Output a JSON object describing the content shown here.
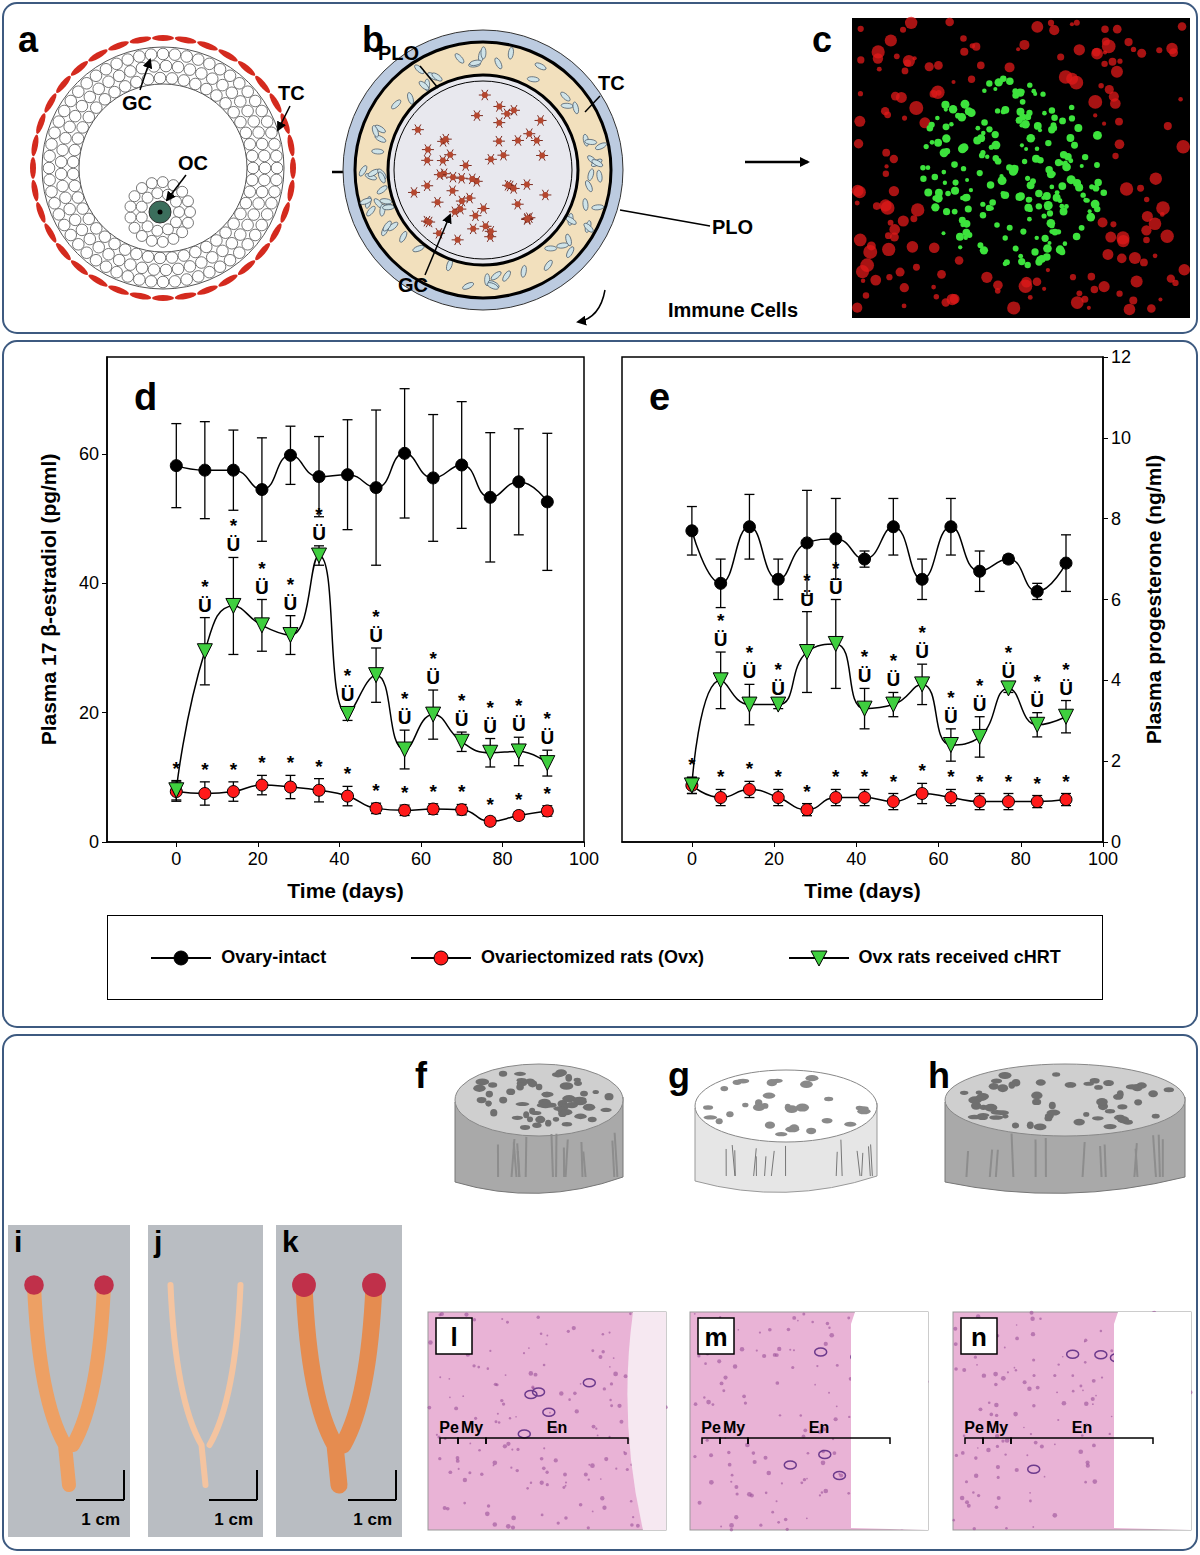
{
  "chart_data": [
    {
      "type": "line",
      "title": "d",
      "xlabel": "Time (days)",
      "ylabel": "Plasma 17 β-estradiol (pg/ml)",
      "x": [
        0,
        7,
        14,
        21,
        28,
        35,
        42,
        49,
        56,
        63,
        70,
        77,
        84,
        91
      ],
      "xlim": [
        -17,
        100
      ],
      "xticks": [
        0,
        20,
        40,
        60,
        80,
        100
      ],
      "ylim": [
        0,
        75
      ],
      "yticks": [
        0,
        20,
        40,
        60
      ],
      "series": [
        {
          "name": "Ovary-intact",
          "color": "#000000",
          "marker": "circle",
          "values": [
            58.2,
            57.5,
            57.5,
            54.5,
            59.8,
            56.5,
            56.8,
            54.8,
            60.1,
            56.3,
            58.3,
            53.3,
            55.7,
            52.6
          ],
          "errors": [
            6.5,
            7.5,
            6.2,
            8.0,
            4.5,
            6.2,
            8.5,
            12.0,
            10.0,
            9.8,
            9.8,
            10.0,
            8.2,
            10.6
          ]
        },
        {
          "name": "Ovariectomized rats (Ovx)",
          "color": "#ff1a1a",
          "marker": "circle",
          "values": [
            7.8,
            7.5,
            7.8,
            8.8,
            8.5,
            8.0,
            7.1,
            5.2,
            4.9,
            5.1,
            5.0,
            3.2,
            4.1,
            4.8
          ],
          "errors": [
            1.5,
            1.8,
            1.5,
            1.5,
            1.8,
            1.8,
            1.5,
            0.8,
            0.8,
            0.8,
            0.8,
            0.6,
            0.6,
            0.8
          ],
          "annotations": [
            null,
            [
              "*"
            ],
            [
              "*"
            ],
            [
              "*"
            ],
            [
              "*"
            ],
            [
              "*"
            ],
            [
              "*"
            ],
            [
              "*"
            ],
            [
              "*"
            ],
            [
              "*"
            ],
            [
              "*"
            ],
            [
              "*"
            ],
            [
              "*"
            ],
            [
              "*"
            ]
          ]
        },
        {
          "name": "Ovx rats received cHRT",
          "color": "#3fcf3f",
          "marker": "triangle-down",
          "values": [
            8.0,
            29.5,
            36.5,
            33.5,
            32.0,
            44.3,
            19.8,
            25.8,
            14.3,
            19.7,
            15.5,
            13.8,
            14.0,
            12.2
          ],
          "errors": [
            1.5,
            5.2,
            7.5,
            4.0,
            3.0,
            1.5,
            1.0,
            4.2,
            3.0,
            3.8,
            1.5,
            2.2,
            2.2,
            2.0
          ],
          "annotations": [
            [
              "*"
            ],
            [
              "*",
              "Ü"
            ],
            [
              "*",
              "Ü"
            ],
            [
              "*",
              "Ü"
            ],
            [
              "*",
              "Ü"
            ],
            [
              "*",
              "Ü"
            ],
            [
              "*",
              "Ü"
            ],
            [
              "*",
              "Ü"
            ],
            [
              "*",
              "Ü"
            ],
            [
              "*",
              "Ü"
            ],
            [
              "*",
              "Ü"
            ],
            [
              "*",
              "Ü"
            ],
            [
              "*",
              "Ü"
            ],
            [
              "*",
              "Ü"
            ]
          ]
        }
      ]
    },
    {
      "type": "line",
      "title": "e",
      "xlabel": "Time (days)",
      "ylabel": "Plasma progesterone (ng/ml)",
      "x": [
        0,
        7,
        14,
        21,
        28,
        35,
        42,
        49,
        56,
        63,
        70,
        77,
        84,
        91
      ],
      "xlim": [
        -17,
        100
      ],
      "xticks": [
        0,
        20,
        40,
        60,
        80,
        100
      ],
      "ylim": [
        0,
        12
      ],
      "yticks": [
        0,
        2,
        4,
        6,
        8,
        10,
        12
      ],
      "series": [
        {
          "name": "Ovary-intact",
          "color": "#000000",
          "marker": "circle",
          "values": [
            7.7,
            6.4,
            7.8,
            6.5,
            7.4,
            7.5,
            7.0,
            7.8,
            6.5,
            7.8,
            6.7,
            7.0,
            6.2,
            6.9
          ],
          "errors": [
            0.6,
            0.6,
            0.8,
            0.5,
            1.3,
            1.0,
            0.2,
            0.7,
            0.5,
            0.7,
            0.5,
            0.1,
            0.2,
            0.7
          ]
        },
        {
          "name": "Ovariectomized rats (Ovx)",
          "color": "#ff1a1a",
          "marker": "circle",
          "values": [
            1.4,
            1.1,
            1.3,
            1.1,
            0.8,
            1.1,
            1.1,
            1.0,
            1.2,
            1.1,
            1.0,
            1.0,
            1.0,
            1.05
          ],
          "errors": [
            0.2,
            0.2,
            0.2,
            0.2,
            0.15,
            0.2,
            0.2,
            0.2,
            0.25,
            0.2,
            0.2,
            0.2,
            0.15,
            0.15
          ],
          "annotations": [
            null,
            [
              "*"
            ],
            [
              "*"
            ],
            [
              "*"
            ],
            [
              "*"
            ],
            [
              "*"
            ],
            [
              "*"
            ],
            [
              "*"
            ],
            [
              "*"
            ],
            [
              "*"
            ],
            [
              "*"
            ],
            [
              "*"
            ],
            [
              "*"
            ],
            [
              "*"
            ]
          ]
        },
        {
          "name": "Ovx rats received cHRT",
          "color": "#3fcf3f",
          "marker": "triangle-down",
          "values": [
            1.4,
            4.0,
            3.4,
            3.4,
            4.7,
            4.9,
            3.3,
            3.4,
            3.9,
            2.4,
            2.6,
            3.8,
            2.9,
            3.1
          ],
          "errors": [
            0.2,
            0.7,
            0.5,
            0.1,
            1.0,
            1.1,
            0.5,
            0.3,
            0.5,
            0.4,
            0.5,
            0.1,
            0.3,
            0.4
          ],
          "annotations": [
            [
              "*"
            ],
            [
              "*",
              "Ü"
            ],
            [
              "*",
              "Ü"
            ],
            [
              "*",
              "Ü"
            ],
            [
              "*",
              "Ü"
            ],
            [
              "*",
              "Ü"
            ],
            [
              "*",
              "Ü"
            ],
            [
              "*",
              "Ü"
            ],
            [
              "*",
              "Ü"
            ],
            [
              "*",
              "Ü"
            ],
            [
              "*",
              "Ü"
            ],
            [
              "*",
              "Ü"
            ],
            [
              "*",
              "Ü"
            ],
            [
              "*",
              "Ü"
            ]
          ]
        }
      ]
    }
  ],
  "diagrams": {
    "a": {
      "label": "a",
      "GC": "GC",
      "OC": "OC",
      "TC": "TC"
    },
    "b": {
      "label": "b",
      "PLO": "PLO",
      "TC": "TC",
      "GC": "GC",
      "immune": "Immune Cells"
    },
    "c": {
      "label": "c"
    }
  },
  "images": {
    "bone": {
      "labels": [
        "f",
        "g",
        "h"
      ]
    },
    "uterus": {
      "labels": [
        "i",
        "j",
        "k"
      ],
      "scale": "1 cm"
    },
    "histology": {
      "labels": [
        "l",
        "m",
        "n"
      ],
      "layers": [
        "Pe",
        "My",
        "En"
      ]
    }
  }
}
